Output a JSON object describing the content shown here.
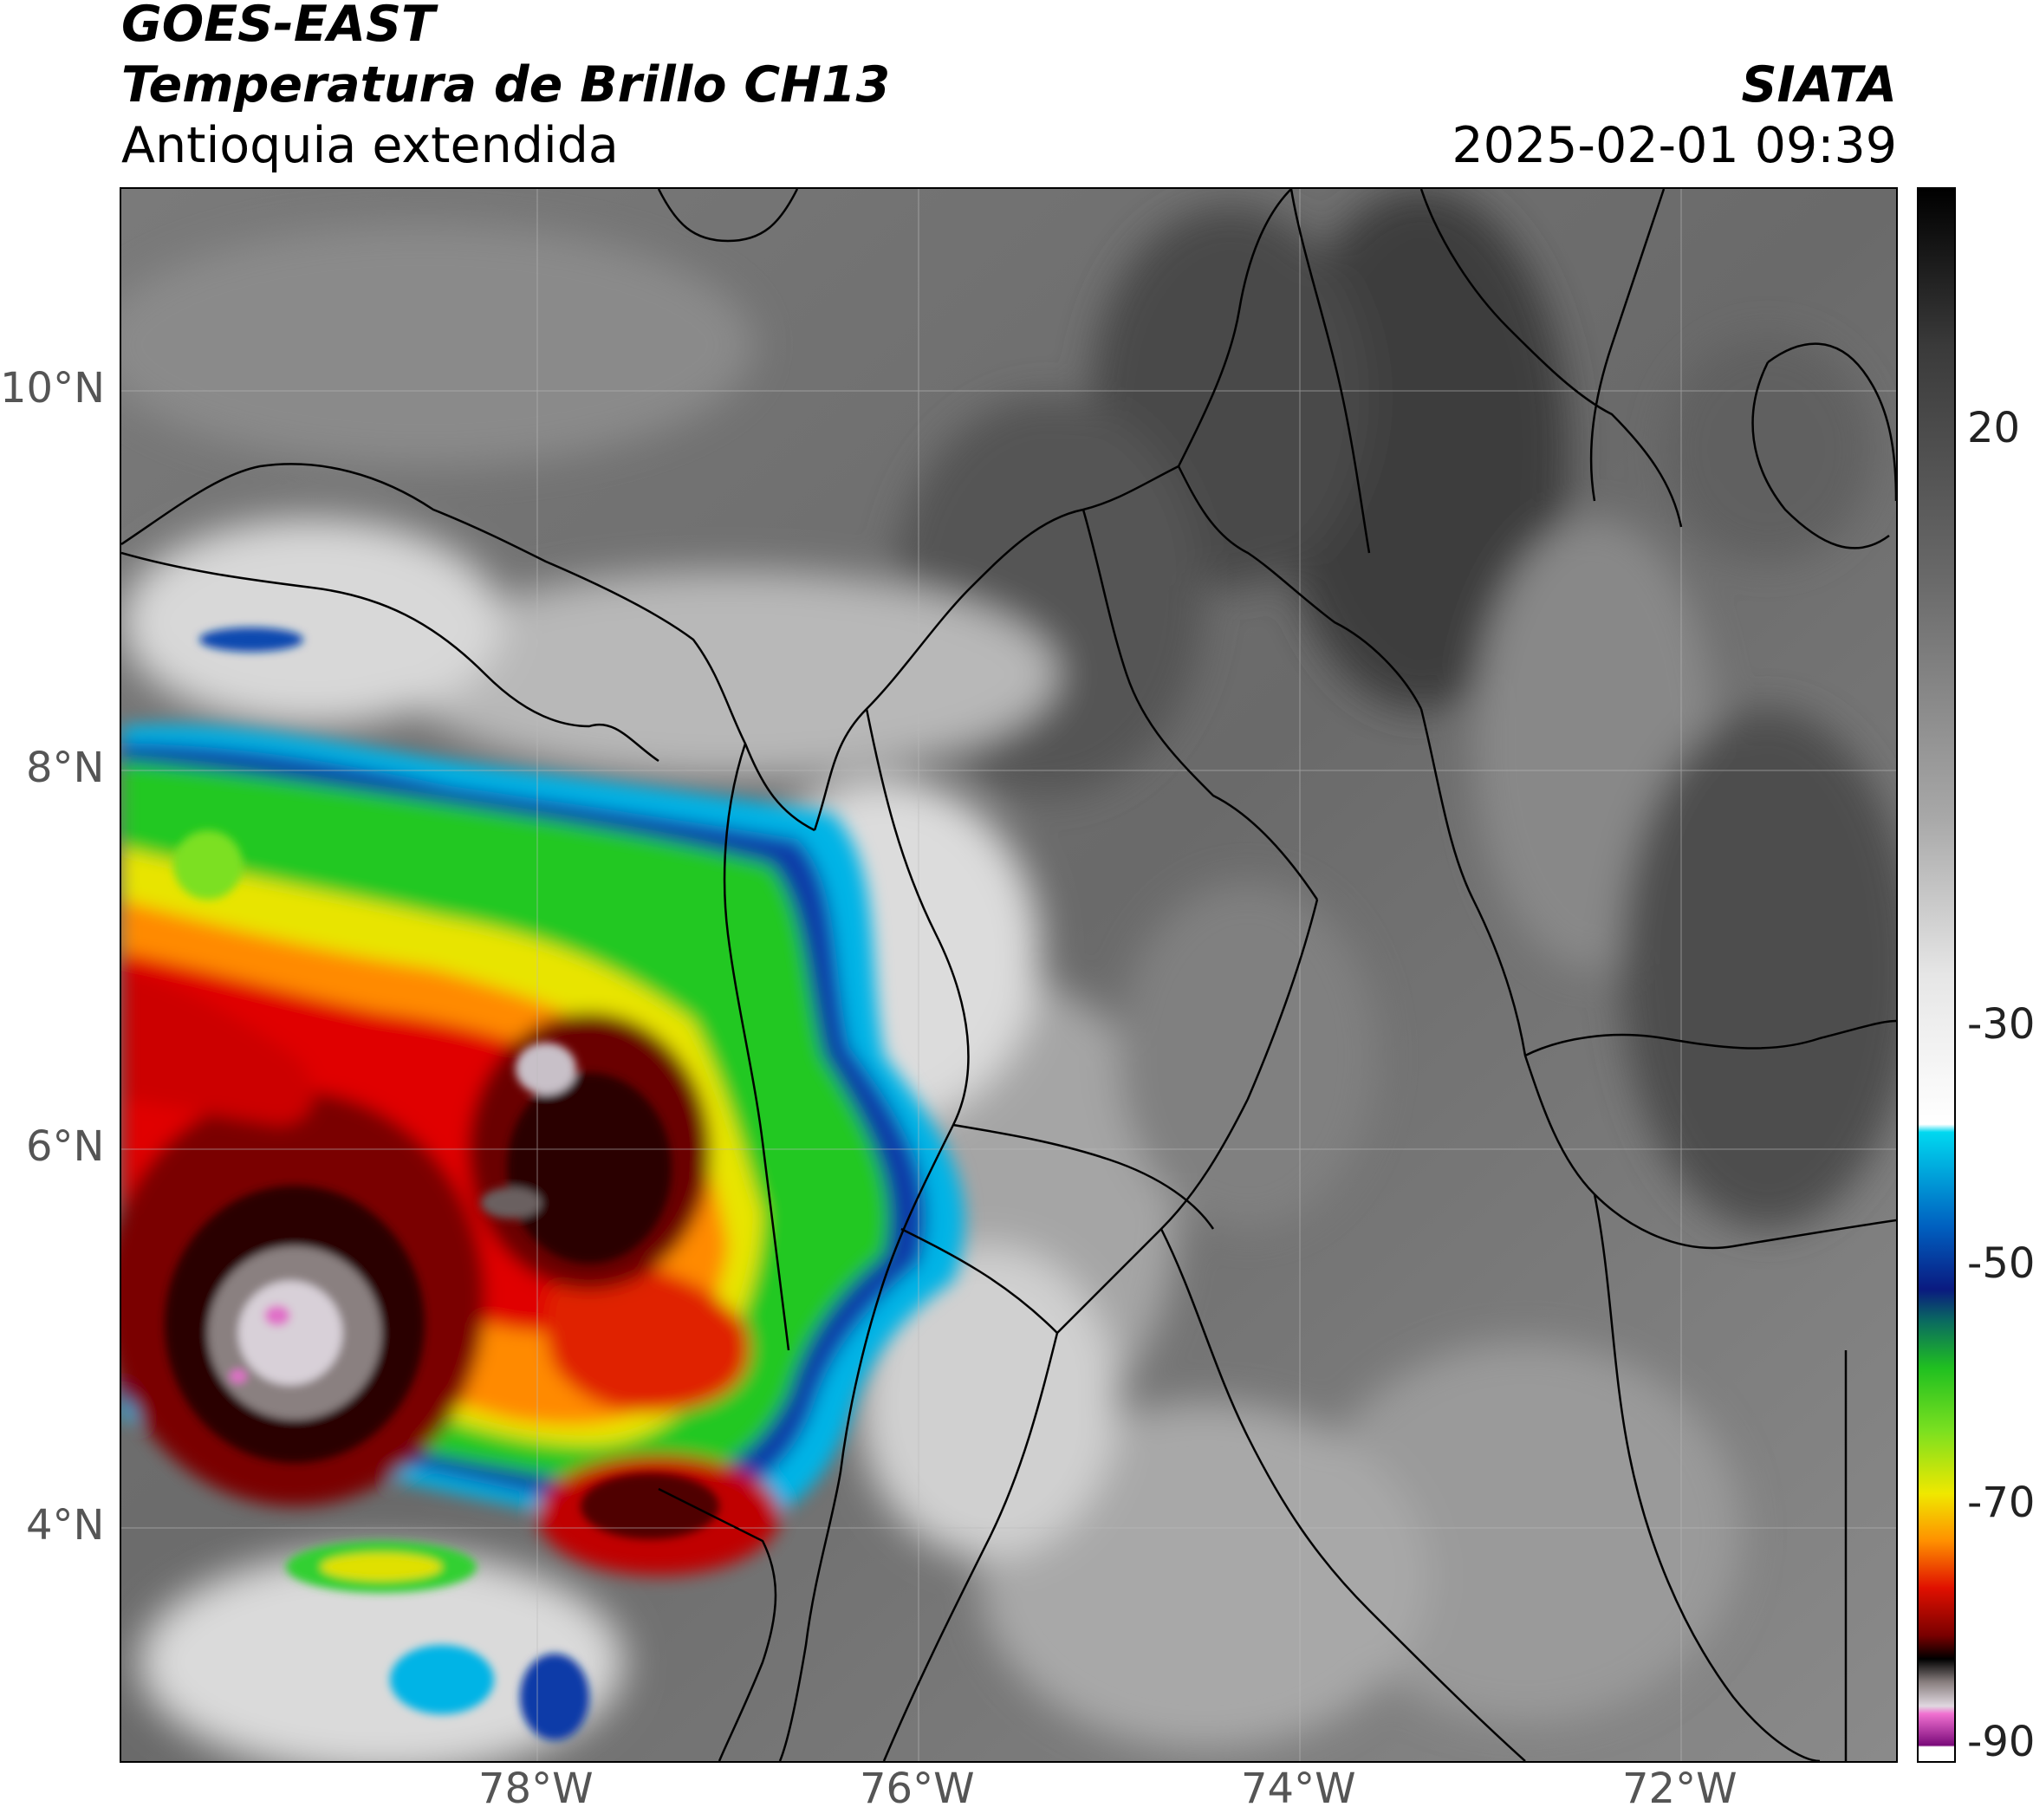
{
  "header": {
    "satellite": "GOES-EAST",
    "product": "Temperatura de Brillo CH13",
    "region": "Antioquia extendida",
    "source": "SIATA",
    "datetime": "2025-02-01 09:39"
  },
  "map": {
    "latitude_labels": [
      "10°N",
      "8°N",
      "6°N",
      "4°N"
    ],
    "longitude_labels": [
      "78°W",
      "76°W",
      "74°W",
      "72°W"
    ],
    "lat_values": [
      10,
      8,
      6,
      4
    ],
    "lon_values": [
      -78,
      -76,
      -74,
      -72
    ],
    "extent": {
      "lon_min": -80.2,
      "lon_max": -70.9,
      "lat_min": 2.9,
      "lat_max": 11.1
    },
    "gridlines": true
  },
  "colorbar": {
    "tick_labels": [
      "20",
      "-30",
      "-50",
      "-70",
      "-90"
    ],
    "tick_values": [
      20,
      -30,
      -50,
      -70,
      -90
    ],
    "range": [
      -92,
      40
    ],
    "colors": {
      "warm_gray_top": "#111111",
      "light_gray": "#f2f2f2",
      "cyan": "#00d8f0",
      "blue": "#0a2a9a",
      "green": "#20d020",
      "yellow": "#f0e800",
      "orange": "#ff8c00",
      "red": "#e00000",
      "dark_red": "#3a0000",
      "pink": "#e070c8",
      "purple": "#7a0a7a"
    }
  }
}
